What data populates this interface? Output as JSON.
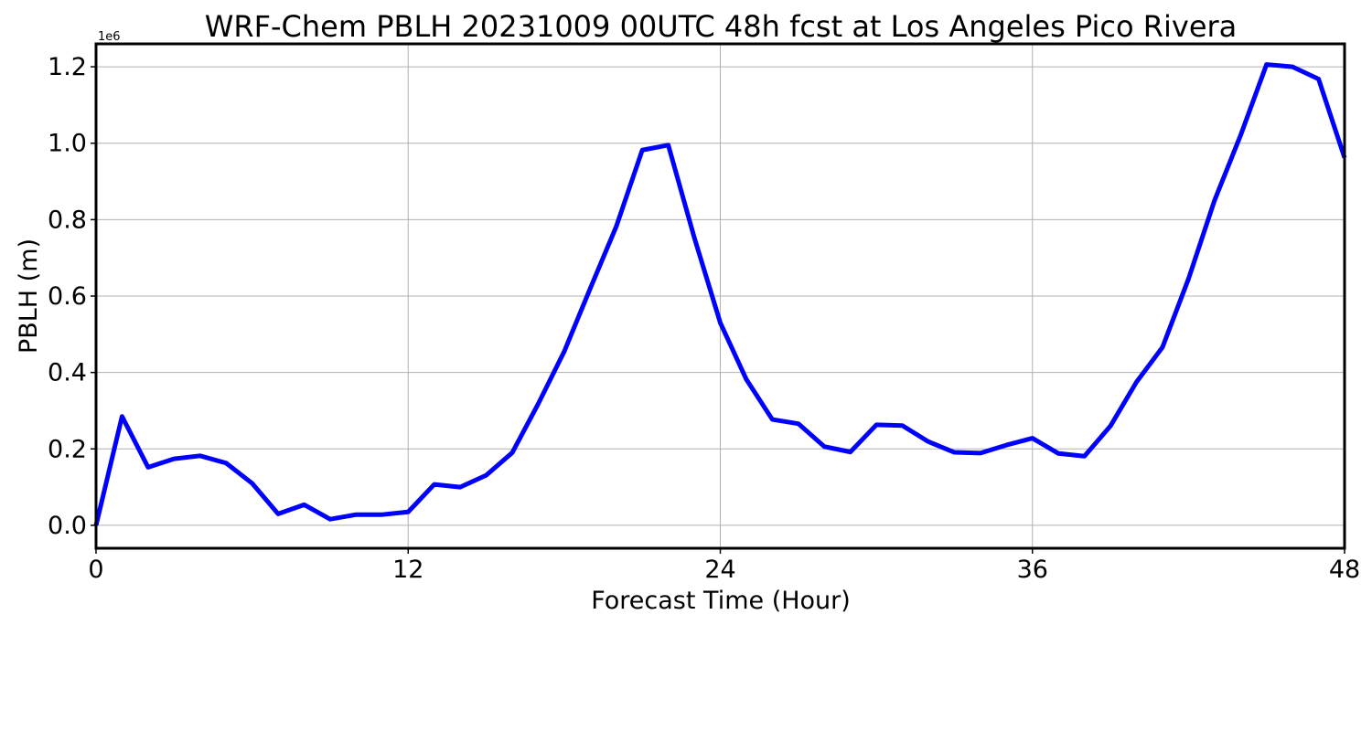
{
  "chart_data": {
    "type": "line",
    "title": "WRF-Chem PBLH  20231009 00UTC 48h fcst at Los Angeles Pico Rivera",
    "xlabel": "Forecast Time (Hour)",
    "ylabel": "PBLH  (m)",
    "y_offset_label": "1e6",
    "xlim": [
      0,
      48
    ],
    "ylim": [
      -0.06,
      1.26
    ],
    "xticks": [
      0,
      12,
      24,
      36,
      48
    ],
    "xtick_labels": [
      "0",
      "12",
      "24",
      "36",
      "48"
    ],
    "yticks": [
      0.0,
      0.2,
      0.4,
      0.6,
      0.8,
      1.0,
      1.2
    ],
    "ytick_labels": [
      "0.0",
      "0.2",
      "0.4",
      "0.6",
      "0.8",
      "1.0",
      "1.2"
    ],
    "grid": true,
    "series": [
      {
        "color": "#0000ff",
        "x": [
          0,
          1,
          2,
          3,
          4,
          5,
          6,
          7,
          8,
          9,
          10,
          11,
          12,
          13,
          14,
          15,
          16,
          17,
          18,
          19,
          20,
          21,
          22,
          23,
          24,
          25,
          26,
          27,
          28,
          29,
          30,
          31,
          32,
          33,
          34,
          35,
          36,
          37,
          38,
          39,
          40,
          41,
          42,
          43,
          44,
          45,
          46,
          47,
          48
        ],
        "y": [
          0.0,
          0.285,
          0.152,
          0.174,
          0.182,
          0.163,
          0.11,
          0.03,
          0.054,
          0.016,
          0.028,
          0.028,
          0.035,
          0.107,
          0.1,
          0.131,
          0.19,
          0.318,
          0.455,
          0.62,
          0.782,
          0.982,
          0.995,
          0.753,
          0.53,
          0.382,
          0.277,
          0.266,
          0.206,
          0.192,
          0.263,
          0.261,
          0.219,
          0.191,
          0.189,
          0.21,
          0.228,
          0.188,
          0.181,
          0.26,
          0.375,
          0.466,
          0.645,
          0.85,
          1.02,
          1.206,
          1.2,
          1.168,
          0.962
        ]
      }
    ]
  }
}
